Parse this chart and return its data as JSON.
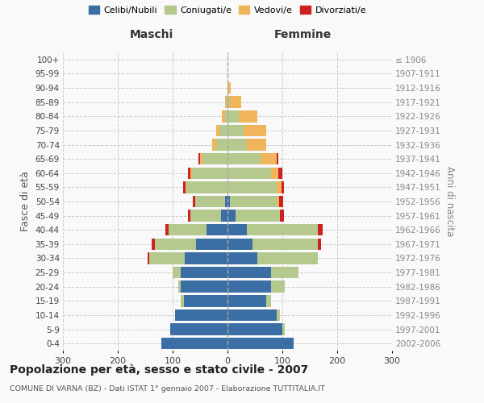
{
  "age_groups": [
    "0-4",
    "5-9",
    "10-14",
    "15-19",
    "20-24",
    "25-29",
    "30-34",
    "35-39",
    "40-44",
    "45-49",
    "50-54",
    "55-59",
    "60-64",
    "65-69",
    "70-74",
    "75-79",
    "80-84",
    "85-89",
    "90-94",
    "95-99",
    "100+"
  ],
  "birth_years": [
    "2002-2006",
    "1997-2001",
    "1992-1996",
    "1987-1991",
    "1982-1986",
    "1977-1981",
    "1972-1976",
    "1967-1971",
    "1962-1966",
    "1957-1961",
    "1952-1956",
    "1947-1951",
    "1942-1946",
    "1937-1941",
    "1932-1936",
    "1927-1931",
    "1922-1926",
    "1917-1921",
    "1912-1916",
    "1907-1911",
    "≤ 1906"
  ],
  "male": {
    "celibi": [
      120,
      105,
      95,
      80,
      85,
      85,
      78,
      58,
      38,
      12,
      4,
      0,
      0,
      0,
      0,
      0,
      0,
      0,
      0,
      0,
      0
    ],
    "coniugati": [
      0,
      0,
      0,
      5,
      5,
      15,
      65,
      75,
      70,
      55,
      55,
      75,
      65,
      45,
      20,
      15,
      5,
      2,
      0,
      0,
      0
    ],
    "vedovi": [
      0,
      0,
      0,
      0,
      0,
      0,
      0,
      0,
      0,
      0,
      0,
      2,
      2,
      5,
      8,
      5,
      5,
      2,
      0,
      0,
      0
    ],
    "divorziati": [
      0,
      0,
      0,
      0,
      0,
      0,
      2,
      5,
      5,
      5,
      4,
      4,
      5,
      3,
      0,
      0,
      0,
      0,
      0,
      0,
      0
    ]
  },
  "female": {
    "nubili": [
      120,
      100,
      90,
      70,
      80,
      80,
      55,
      45,
      35,
      15,
      4,
      0,
      0,
      0,
      0,
      0,
      0,
      0,
      0,
      0,
      0
    ],
    "coniugate": [
      0,
      5,
      5,
      10,
      25,
      50,
      110,
      120,
      130,
      80,
      85,
      90,
      80,
      60,
      35,
      30,
      20,
      5,
      2,
      0,
      0
    ],
    "vedove": [
      0,
      0,
      0,
      0,
      0,
      0,
      0,
      0,
      0,
      0,
      5,
      8,
      12,
      30,
      35,
      40,
      35,
      20,
      4,
      0,
      0
    ],
    "divorziate": [
      0,
      0,
      0,
      0,
      0,
      0,
      0,
      5,
      8,
      8,
      8,
      5,
      8,
      3,
      0,
      0,
      0,
      0,
      0,
      0,
      0
    ]
  },
  "colors": {
    "celibi": "#3a6ea5",
    "coniugati": "#b5c98e",
    "vedovi": "#f0b45a",
    "divorziati": "#cc2222"
  },
  "title": "Popolazione per età, sesso e stato civile - 2007",
  "subtitle": "COMUNE DI VARNA (BZ) - Dati ISTAT 1° gennaio 2007 - Elaborazione TUTTITALIA.IT",
  "xlabel_left": "Maschi",
  "xlabel_right": "Femmine",
  "ylabel_left": "Fasce di età",
  "ylabel_right": "Anni di nascita",
  "xlim": 300,
  "bg_color": "#f9f9f9",
  "grid_color": "#cccccc"
}
